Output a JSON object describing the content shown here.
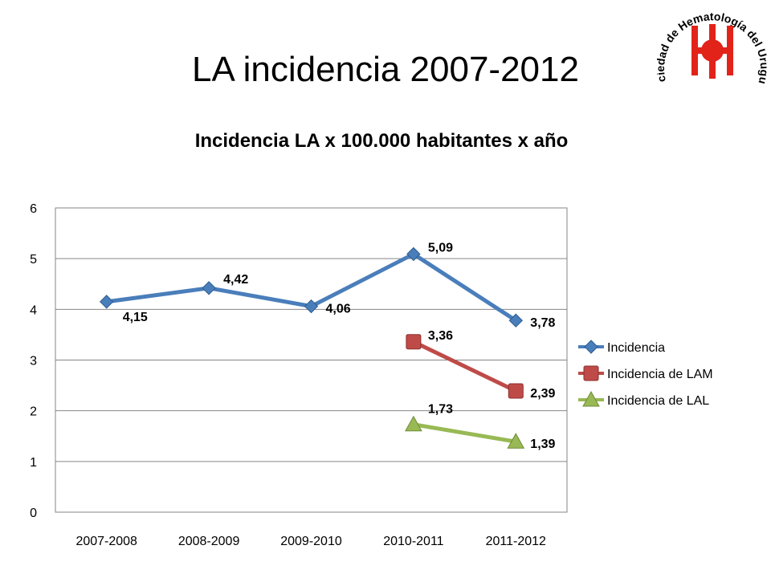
{
  "slide": {
    "title": "LA incidencia 2007-2012",
    "logo_text": "Sociedad de Hematología del Uruguay"
  },
  "chart_data": {
    "type": "line",
    "title": "Incidencia LA x 100.000 habitantes x año",
    "xlabel": "",
    "ylabel": "",
    "categories": [
      "2007-2008",
      "2008-2009",
      "2009-2010",
      "2010-2011",
      "2011-2012"
    ],
    "ylim": [
      0,
      6
    ],
    "yticks": [
      0,
      1,
      2,
      3,
      4,
      5,
      6
    ],
    "grid": true,
    "legend": "right",
    "series": [
      {
        "name": "Incidencia",
        "color": "#4A7EBB",
        "marker": "diamond",
        "values": [
          4.15,
          4.42,
          4.06,
          5.09,
          3.78
        ],
        "labels": [
          "4,15",
          "4,42",
          "4,06",
          "5,09",
          "3,78"
        ]
      },
      {
        "name": "Incidencia de LAM",
        "color": "#BE4B48",
        "marker": "square",
        "values": [
          null,
          null,
          null,
          3.36,
          2.39
        ],
        "labels": [
          null,
          null,
          null,
          "3,36",
          "2,39"
        ]
      },
      {
        "name": "Incidencia de LAL",
        "color": "#98B954",
        "marker": "triangle",
        "values": [
          null,
          null,
          null,
          1.73,
          1.39
        ],
        "labels": [
          null,
          null,
          null,
          "1,73",
          "1,39"
        ]
      }
    ]
  }
}
